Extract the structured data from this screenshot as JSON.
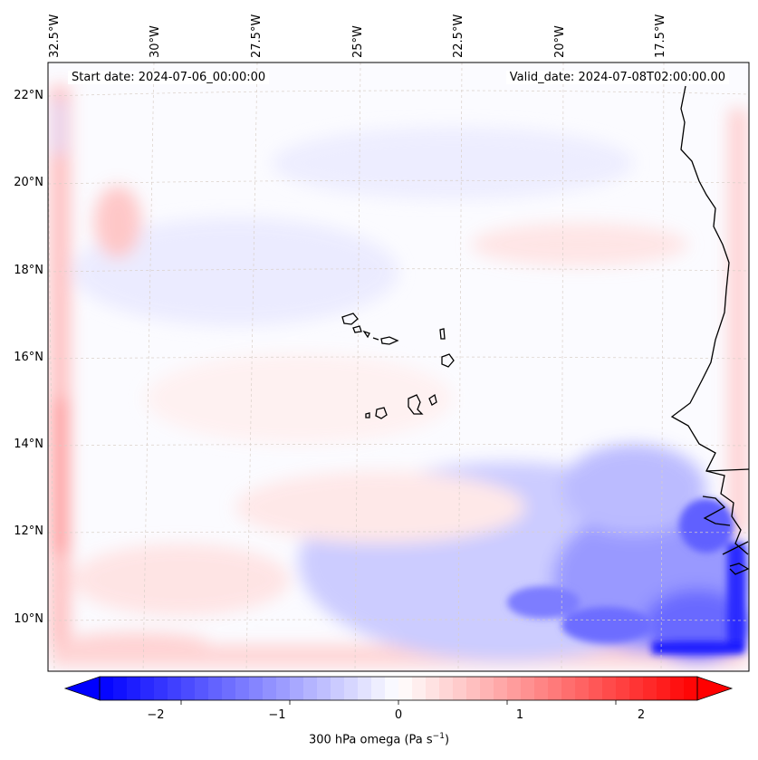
{
  "map": {
    "start_date": "Start date: 2024-07-06_00:00:00",
    "valid_date": "Valid_date: 2024-07-08T02:00:00.00",
    "lon_labels": [
      "32.5°W",
      "30°W",
      "27.5°W",
      "25°W",
      "22.5°W",
      "20°W",
      "17.5°W"
    ],
    "lat_labels": [
      "22°N",
      "20°N",
      "18°N",
      "16°N",
      "14°N",
      "12°N",
      "10°N"
    ],
    "colorbar": {
      "ticks": [
        "−2",
        "−1",
        "0",
        "1",
        "2"
      ],
      "tick_values": [
        -2,
        -1,
        0,
        1,
        2
      ],
      "range": [
        -2.75,
        2.75
      ],
      "label_main": "300 hPa omega (Pa s",
      "label_exp": "−1",
      "label_end": ")",
      "colormap": "bwr",
      "low_color": "#0000ff",
      "mid_color": "#ffffff",
      "high_color": "#ff0000"
    },
    "coast_color": "#000000"
  }
}
